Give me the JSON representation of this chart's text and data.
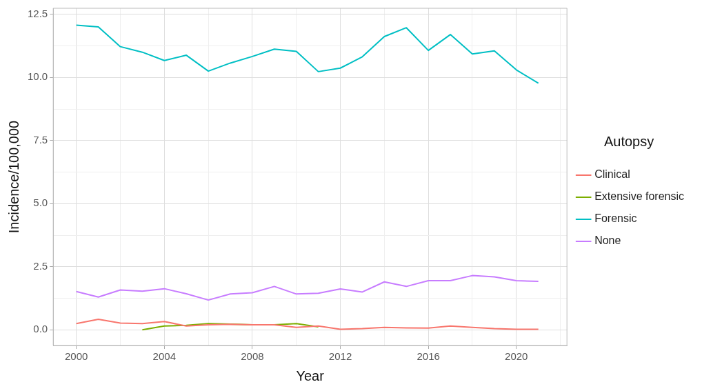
{
  "chart_data": {
    "type": "line",
    "xlabel": "Year",
    "ylabel": "Incidence/100,000",
    "legend_title": "Autopsy",
    "legend": "right",
    "grid": true,
    "marker": "none",
    "line_style": "solid",
    "x": [
      2000,
      2001,
      2002,
      2003,
      2004,
      2005,
      2006,
      2007,
      2008,
      2009,
      2010,
      2011,
      2012,
      2013,
      2014,
      2015,
      2016,
      2017,
      2018,
      2019,
      2020,
      2021
    ],
    "xlim": [
      1998.95,
      2022.3
    ],
    "xticks": [
      2000,
      {
        "value": 2002,
        "label": null
      },
      2004,
      {
        "value": 2006,
        "label": null
      },
      2008,
      {
        "value": 2010,
        "label": null
      },
      2012,
      {
        "value": 2014,
        "label": null
      },
      2016,
      {
        "value": 2018,
        "label": null
      },
      2020,
      {
        "value": 2022,
        "label": null
      }
    ],
    "ylim": [
      -0.62,
      12.74
    ],
    "yticks": [
      "0.0",
      {
        "value": 1.25,
        "label": null
      },
      {
        "value": 2.5,
        "label": "2.5"
      },
      {
        "value": 3.75,
        "label": null
      },
      {
        "value": 5,
        "label": "5.0"
      },
      {
        "value": 6.25,
        "label": null
      },
      {
        "value": 7.5,
        "label": "7.5"
      },
      {
        "value": 8.75,
        "label": null
      },
      {
        "value": 10,
        "label": "10.0"
      },
      {
        "value": 11.25,
        "label": null
      },
      {
        "value": 12.5,
        "label": "12.5"
      }
    ],
    "series": [
      {
        "name": "Clinical",
        "color": "#f8766d",
        "values": [
          0.25,
          0.42,
          0.27,
          0.25,
          0.33,
          0.15,
          0.2,
          0.22,
          0.2,
          0.2,
          0.1,
          0.15,
          0.02,
          0.05,
          0.1,
          0.08,
          0.07,
          0.15,
          0.1,
          0.05,
          0.02,
          0.02
        ]
      },
      {
        "name": "Extensive forensic",
        "color": "#7cae00",
        "values": [
          null,
          null,
          null,
          0.0,
          0.15,
          0.18,
          0.25,
          0.23,
          0.2,
          0.2,
          0.25,
          0.12,
          null,
          null,
          null,
          null,
          null,
          null,
          null,
          null,
          null,
          null
        ]
      },
      {
        "name": "Forensic",
        "color": "#00bfc4",
        "values": [
          12.07,
          12.0,
          11.22,
          11.0,
          10.67,
          10.88,
          10.25,
          10.57,
          10.83,
          11.12,
          11.03,
          10.23,
          10.37,
          10.82,
          11.62,
          11.97,
          11.07,
          11.7,
          10.93,
          11.05,
          10.3,
          9.77
        ]
      },
      {
        "name": "None",
        "color": "#c77cff",
        "values": [
          1.52,
          1.3,
          1.58,
          1.53,
          1.63,
          1.43,
          1.18,
          1.42,
          1.47,
          1.72,
          1.42,
          1.45,
          1.62,
          1.5,
          1.9,
          1.72,
          1.95,
          1.95,
          2.15,
          2.1,
          1.95,
          1.92
        ]
      }
    ]
  }
}
